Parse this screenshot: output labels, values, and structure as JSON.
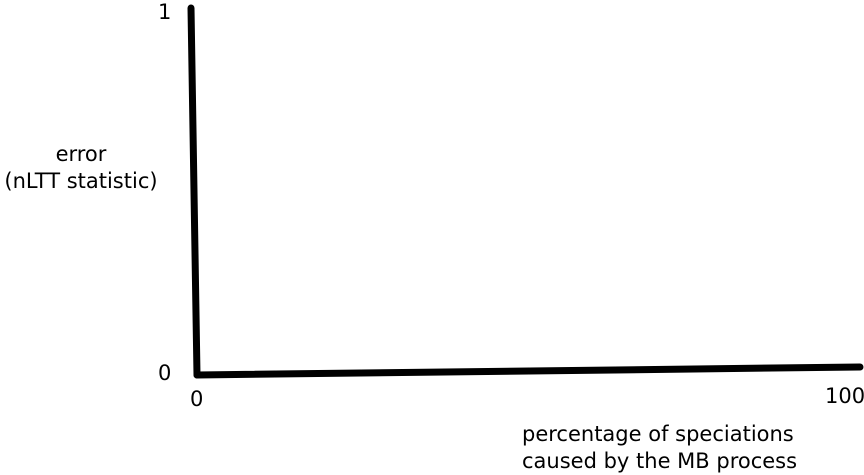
{
  "chart_data": {
    "type": "line",
    "title": "",
    "xlabel": "percentage of speciations caused by the MB process",
    "xlabel_lines": [
      "percentage of speciations",
      "caused by the MB process"
    ],
    "ylabel": "error (nLTT statistic)",
    "ylabel_lines": [
      "error",
      "(nLTT statistic)"
    ],
    "xlim": [
      0,
      100
    ],
    "ylim": [
      0,
      1
    ],
    "x_ticks": [
      "0",
      "100"
    ],
    "y_ticks": [
      "0",
      "1"
    ],
    "series": [],
    "grid": false,
    "legend": "none",
    "axis_color": "#000000"
  }
}
